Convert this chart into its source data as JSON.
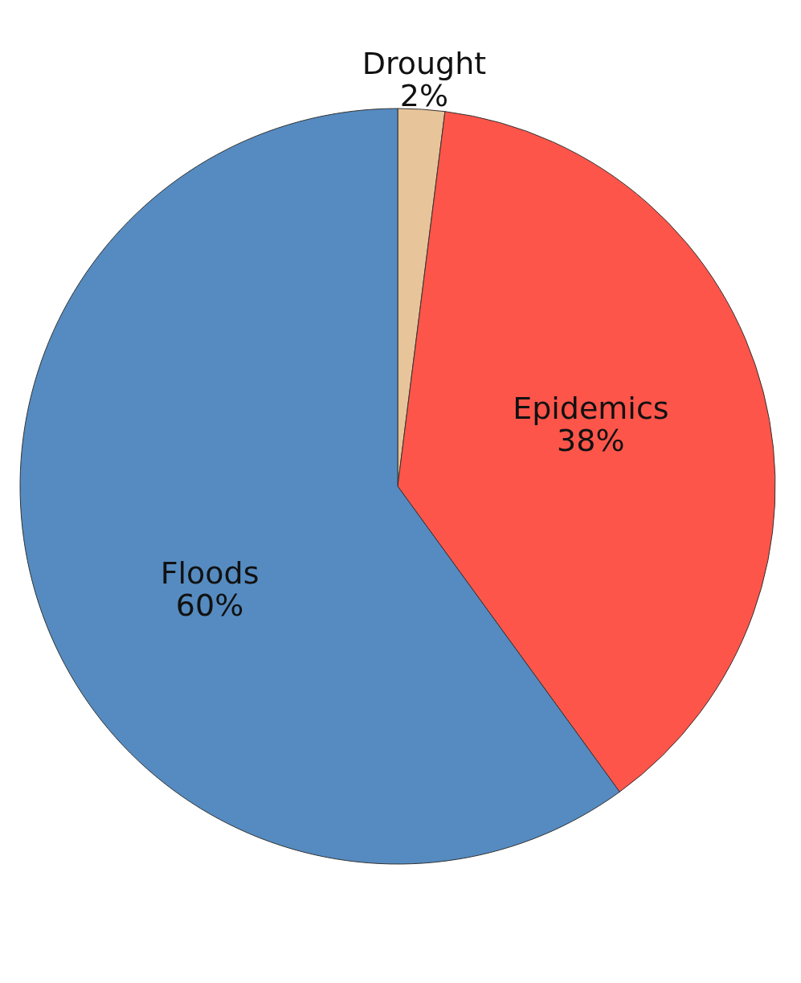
{
  "chart_data": {
    "type": "pie",
    "categories": [
      "Drought",
      "Epidemics",
      "Floods"
    ],
    "values": [
      2,
      38,
      60
    ],
    "colors": [
      "#e8c49a",
      "#fe554a",
      "#558bc0"
    ],
    "value_labels": [
      "2%",
      "38%",
      "60%"
    ]
  }
}
